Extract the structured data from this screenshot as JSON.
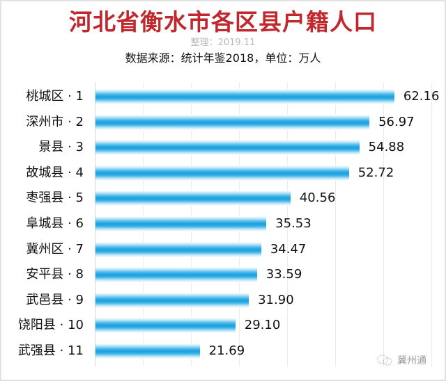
{
  "header": {
    "title": "河北省衡水市各区县户籍人口",
    "subtitle": "整理：2019.11",
    "source": "数据来源：统计年鉴2018，单位：万人"
  },
  "watermark": {
    "icon": "wechat-icon",
    "text": "冀州通"
  },
  "colors": {
    "title": "#c0282d",
    "bar": "#1b9fdc",
    "gridline": "#ececec"
  },
  "chart_data": {
    "type": "bar",
    "orientation": "horizontal",
    "title": "河北省衡水市各区县户籍人口",
    "subtitle": "整理：2019.11",
    "note": "数据来源：统计年鉴2018，单位：万人",
    "xlabel": "",
    "ylabel": "",
    "unit": "万人",
    "xlim": [
      0,
      70
    ],
    "grid": true,
    "grid_step": 10,
    "legend": "none",
    "categories": [
      "桃城区 · 1",
      "深州市 · 2",
      "景县 · 3",
      "故城县 · 4",
      "枣强县 · 5",
      "阜城县 · 6",
      "冀州区 · 7",
      "安平县 · 8",
      "武邑县 · 9",
      "饶阳县 · 10",
      "武强县 · 11"
    ],
    "values": [
      62.16,
      56.97,
      54.88,
      52.72,
      40.56,
      35.53,
      34.47,
      33.59,
      31.9,
      29.1,
      21.69
    ],
    "value_labels": [
      "62.16",
      "56.97",
      "54.88",
      "52.72",
      "40.56",
      "35.53",
      "34.47",
      "33.59",
      "31.90",
      "29.10",
      "21.69"
    ]
  }
}
